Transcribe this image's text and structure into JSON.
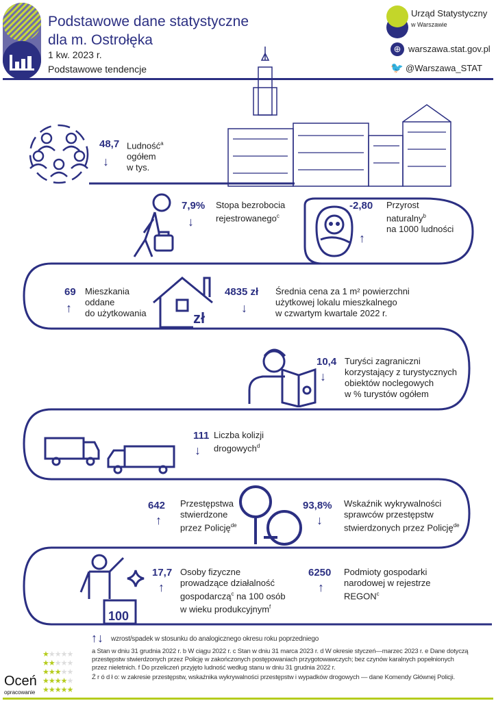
{
  "header": {
    "title_line1": "Podstawowe dane statystyczne",
    "title_line2": "dla m. Ostrołęka",
    "period": "1 kw. 2023 r.",
    "subtitle": "Podstawowe tendencje"
  },
  "brand": {
    "org_line1": "Urząd Statystyczny",
    "org_line2": "w Warszawie",
    "website": "warszawa.stat.gov.pl",
    "twitter": "@Warszawa_STAT"
  },
  "colors": {
    "navy": "#2b2f82",
    "lime": "#b5cc1c"
  },
  "indicators": [
    {
      "value": "48,7",
      "trend": "down",
      "label": "Ludność",
      "sup": "a",
      "label2": "ogółem",
      "label3": "w tys."
    },
    {
      "value": "7,9%",
      "trend": "down",
      "label": "Stopa bezrobocia",
      "label2": "rejestrowanego",
      "sup": "c"
    },
    {
      "value": "-2,80",
      "trend": "up",
      "label": "Przyrost",
      "label2": "naturalny",
      "sup": "b",
      "label3": "na 1000 ludności"
    },
    {
      "value": "69",
      "trend": "up",
      "label": "Mieszkania",
      "label2": "oddane",
      "label3": "do użytkowania"
    },
    {
      "value": "4835 zł",
      "trend": "down",
      "label": "Średnia cena za 1 m² powierzchni",
      "label2": "użytkowej lokalu mieszkalnego",
      "label3": "w czwartym kwartale 2022 r."
    },
    {
      "value": "10,4",
      "trend": "down",
      "label": "Turyści zagraniczni",
      "label2": "korzystający z turystycznych",
      "label3": "obiektów noclegowych",
      "label4": "w % turystów ogółem"
    },
    {
      "value": "111",
      "trend": "down",
      "label": "Liczba kolizji",
      "label2": "drogowych",
      "sup": "d"
    },
    {
      "value": "642",
      "trend": "up",
      "label": "Przestępstwa",
      "label2": "stwierdzone",
      "label3": "przez Policję",
      "sup": "de"
    },
    {
      "value": "93,8%",
      "trend": "down",
      "label": "Wskaźnik wykrywalności",
      "label2": "sprawców przestępstw",
      "label3": "stwierdzonych przez Policję",
      "sup": "de"
    },
    {
      "value": "17,7",
      "trend": "up",
      "label": "Osoby fizyczne",
      "label2": "prowadzące działalność",
      "label3": "gospodarczą",
      "sup3": "c",
      "label3b": " na 100 osób",
      "label4": "w wieku produkcyjnym",
      "sup": "f"
    },
    {
      "value": "6250",
      "trend": "up",
      "label": "Podmioty gospodarki",
      "label2": "narodowej w rejestrze",
      "label3": "REGON",
      "sup": "c"
    }
  ],
  "icon_texts": {
    "currency": "zł",
    "pedestal": "100"
  },
  "legend": {
    "up": "↑",
    "down": "↓",
    "text": "wzrost/spadek w stosunku do analogicznego okresu roku poprzedniego"
  },
  "footnotes": {
    "line1": "a Stan w dniu 31 grudnia 2022 r. b W ciągu 2022 r. c Stan w dniu 31 marca 2023 r. d W okresie styczeń—marzec 2023 r. e Dane dotyczą",
    "line2": "przestępstw stwierdzonych przez Policję w zakończonych postępowaniach przygotowawczych; bez czynów karalnych popełnionych",
    "line3": "przez nieletnich. f Do przeliczeń przyjęto ludność według stanu w dniu 31 grudnia 2022 r.",
    "source_label": "Ź r ó d ł o:",
    "source": "w zakresie przestępstw, wskaźnika wykrywalności przestępstw i wypadków drogowych — dane Komendy Głównej Policji."
  },
  "rating": {
    "title": "Oceń",
    "subtitle": "opracowanie",
    "levels": [
      1,
      2,
      3,
      4,
      5
    ]
  }
}
